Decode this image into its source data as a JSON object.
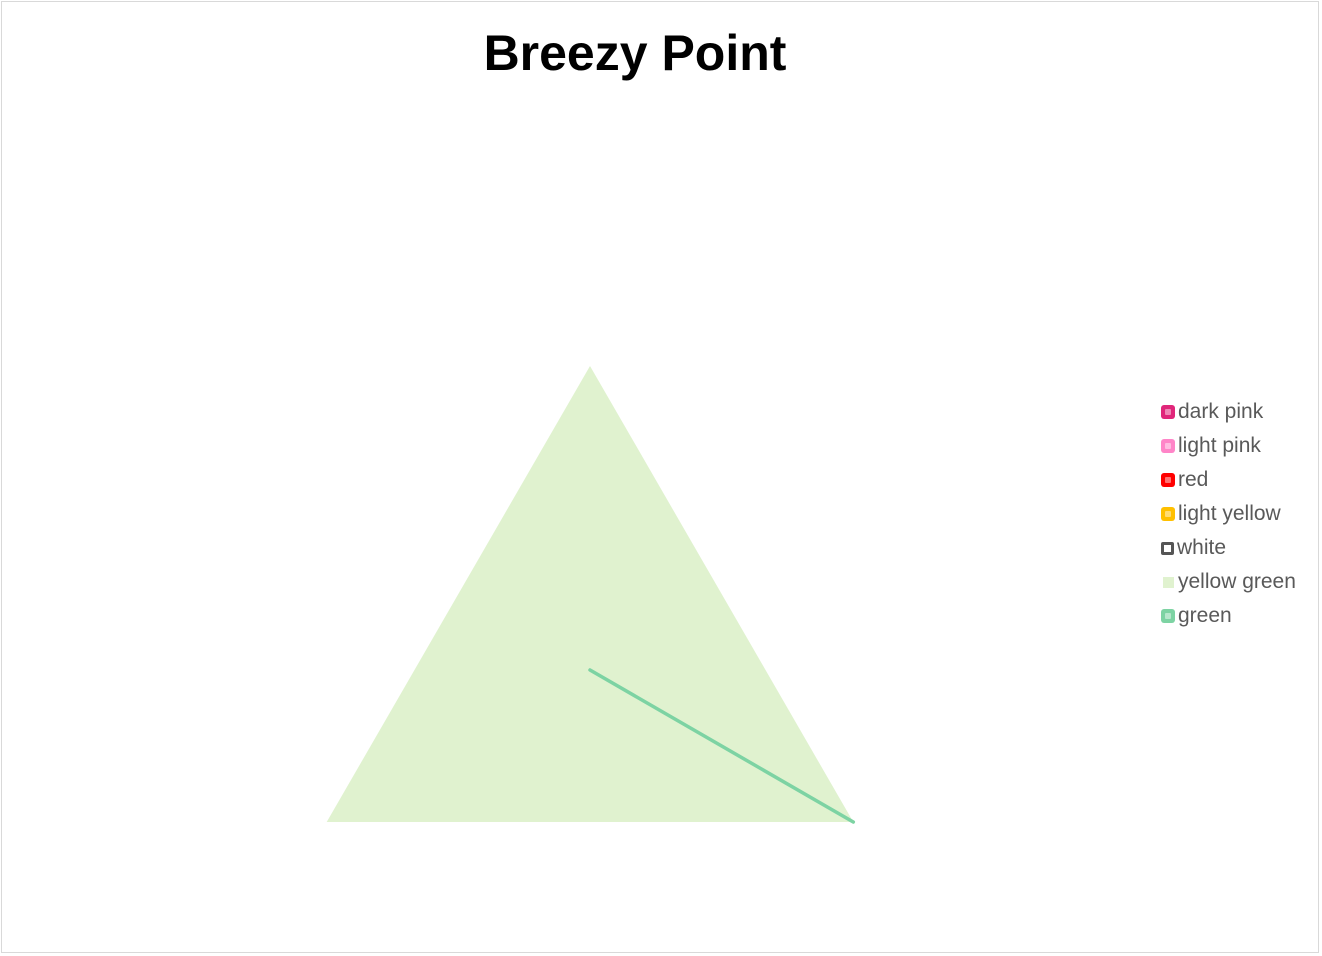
{
  "chart_data": {
    "type": "radar",
    "title": "Breezy Point",
    "categories": [
      "",
      "",
      ""
    ],
    "series": [
      {
        "name": "dark pink",
        "type": "line",
        "color": "#e0267a",
        "values": [
          0,
          0,
          0
        ]
      },
      {
        "name": "light pink",
        "type": "line",
        "color": "#ff85c8",
        "values": [
          0,
          0,
          0
        ]
      },
      {
        "name": "red",
        "type": "line",
        "color": "#ff0000",
        "values": [
          0,
          0,
          0
        ]
      },
      {
        "name": "light yellow",
        "type": "line",
        "color": "#ffc000",
        "values": [
          0,
          0,
          0
        ]
      },
      {
        "name": "white",
        "type": "line",
        "color": "#ffffff",
        "values": [
          0,
          0,
          0
        ]
      },
      {
        "name": "yellow green",
        "type": "filled",
        "color": "#e0f2cf",
        "values": [
          1,
          1,
          1
        ]
      },
      {
        "name": "green",
        "type": "line",
        "color": "#7dd3a3",
        "values": [
          0,
          1,
          0
        ]
      }
    ],
    "grid": false,
    "legend_position": "right"
  }
}
